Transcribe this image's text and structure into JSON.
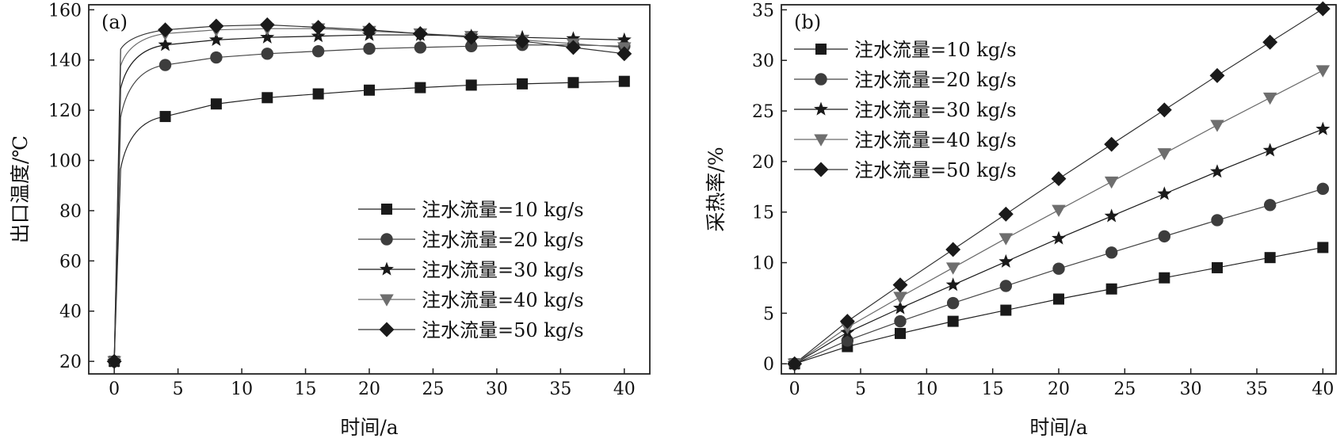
{
  "chart_data": [
    {
      "type": "line",
      "panel_label": "(a)",
      "xlabel": "时间/a",
      "ylabel": "出口温度/℃",
      "xlim": [
        -2,
        42
      ],
      "ylim": [
        15,
        162
      ],
      "xticks": [
        0,
        5,
        10,
        15,
        20,
        25,
        30,
        35,
        40
      ],
      "yticks": [
        20,
        40,
        60,
        80,
        100,
        120,
        140,
        160
      ],
      "legend_position": "lower-right",
      "grid": false,
      "x": [
        0,
        4,
        8,
        12,
        16,
        20,
        24,
        28,
        32,
        36,
        40
      ],
      "series": [
        {
          "name": "注水流量=10 kg/s",
          "marker": "square",
          "values": [
            20,
            117.5,
            122.5,
            125,
            126.5,
            128,
            129,
            130,
            130.5,
            131,
            131.5
          ]
        },
        {
          "name": "注水流量=20 kg/s",
          "marker": "circle",
          "values": [
            20,
            138,
            141,
            142.5,
            143.5,
            144.5,
            145,
            145.5,
            146,
            146,
            145.5
          ]
        },
        {
          "name": "注水流量=30 kg/s",
          "marker": "star",
          "values": [
            20,
            146,
            148,
            149,
            149.5,
            150,
            150,
            149.5,
            149,
            148.5,
            148
          ]
        },
        {
          "name": "注水流量=40 kg/s",
          "marker": "triangle-down",
          "values": [
            20,
            150.5,
            152,
            152.5,
            152.5,
            151.5,
            150.5,
            149.5,
            148,
            146.5,
            145
          ]
        },
        {
          "name": "注水流量=50 kg/s",
          "marker": "diamond",
          "values": [
            20,
            152,
            153.5,
            154,
            153,
            152,
            150.5,
            149,
            147.5,
            145,
            142.5
          ]
        }
      ]
    },
    {
      "type": "line",
      "panel_label": "(b)",
      "xlabel": "时间/a",
      "ylabel": "采热率/%",
      "xlim": [
        -1,
        41
      ],
      "ylim": [
        -1,
        35.5
      ],
      "xticks": [
        0,
        5,
        10,
        15,
        20,
        25,
        30,
        35,
        40
      ],
      "yticks": [
        0,
        5,
        10,
        15,
        20,
        25,
        30,
        35
      ],
      "legend_position": "upper-left",
      "grid": false,
      "x": [
        0,
        4,
        8,
        12,
        16,
        20,
        24,
        28,
        32,
        36,
        40
      ],
      "series": [
        {
          "name": "注水流量=10 kg/s",
          "marker": "square",
          "values": [
            0,
            1.7,
            3.0,
            4.2,
            5.3,
            6.4,
            7.4,
            8.5,
            9.5,
            10.5,
            11.5
          ]
        },
        {
          "name": "注水流量=20 kg/s",
          "marker": "circle",
          "values": [
            0,
            2.3,
            4.2,
            6.0,
            7.7,
            9.4,
            11.0,
            12.6,
            14.2,
            15.7,
            17.3
          ]
        },
        {
          "name": "注水流量=30 kg/s",
          "marker": "star",
          "values": [
            0,
            3.1,
            5.5,
            7.8,
            10.1,
            12.4,
            14.6,
            16.8,
            19.0,
            21.1,
            23.2
          ]
        },
        {
          "name": "注水流量=40 kg/s",
          "marker": "triangle-down",
          "values": [
            0,
            3.6,
            6.6,
            9.5,
            12.4,
            15.2,
            18.0,
            20.8,
            23.6,
            26.3,
            29.0
          ]
        },
        {
          "name": "注水流量=50 kg/s",
          "marker": "diamond",
          "values": [
            0,
            4.2,
            7.8,
            11.3,
            14.8,
            18.3,
            21.7,
            25.1,
            28.5,
            31.8,
            35.1
          ]
        }
      ]
    }
  ]
}
